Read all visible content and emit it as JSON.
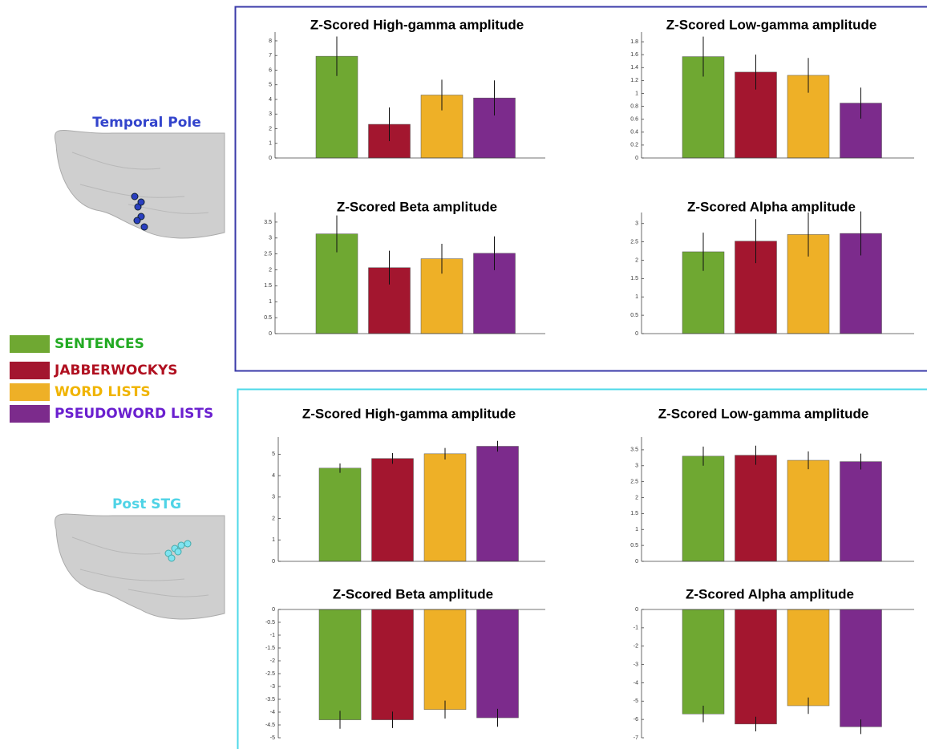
{
  "regions": [
    {
      "label": "Temporal Pole",
      "color": "#3344cc",
      "electrode_color": "#2a3fc0"
    },
    {
      "label": "Post STG",
      "color": "#4fd3e6",
      "electrode_color": "#7fe3f0"
    }
  ],
  "legend": [
    {
      "name": "SENTENCES",
      "color": "#6fa832",
      "label_color": "#22aa22"
    },
    {
      "name": "JABBERWOCKYS",
      "color": "#a3162f",
      "label_color": "#b01020"
    },
    {
      "name": "WORD LISTS",
      "color": "#eeb027",
      "label_color": "#f0b400"
    },
    {
      "name": "PSEUDOWORD LISTS",
      "color": "#7c2b8c",
      "label_color": "#6a1fcf"
    }
  ],
  "chart_data": [
    {
      "type": "bar",
      "title": "Z-Scored High-gamma amplitude",
      "values": [
        6.95,
        2.3,
        4.3,
        4.1
      ],
      "errors": [
        1.35,
        1.15,
        1.05,
        1.2
      ],
      "ylim": [
        0,
        8.6
      ],
      "yticks": [
        0,
        1,
        2,
        3,
        4,
        5,
        6,
        7,
        8
      ]
    },
    {
      "type": "bar",
      "title": "Z-Scored Low-gamma amplitude",
      "values": [
        1.57,
        1.33,
        1.28,
        0.85
      ],
      "errors": [
        0.31,
        0.27,
        0.27,
        0.24
      ],
      "ylim": [
        0,
        1.95
      ],
      "yticks": [
        0,
        0.2,
        0.4,
        0.6,
        0.8,
        1,
        1.2,
        1.4,
        1.6,
        1.8
      ]
    },
    {
      "type": "bar",
      "title": "Z-Scored Beta amplitude",
      "values": [
        3.13,
        2.07,
        2.35,
        2.52
      ],
      "errors": [
        0.58,
        0.53,
        0.47,
        0.53
      ],
      "ylim": [
        0,
        3.8
      ],
      "yticks": [
        0,
        0.5,
        1,
        1.5,
        2,
        2.5,
        3,
        3.5
      ]
    },
    {
      "type": "bar",
      "title": "Z-Scored Alpha amplitude",
      "values": [
        2.23,
        2.52,
        2.7,
        2.73
      ],
      "errors": [
        0.52,
        0.6,
        0.6,
        0.6
      ],
      "ylim": [
        0,
        3.3
      ],
      "yticks": [
        0,
        0.5,
        1,
        1.5,
        2,
        2.5,
        3
      ]
    },
    {
      "type": "bar",
      "title": "Z-Scored High-gamma amplitude",
      "values": [
        4.35,
        4.8,
        5.02,
        5.37
      ],
      "errors": [
        0.22,
        0.25,
        0.27,
        0.25
      ],
      "ylim": [
        0,
        5.8
      ],
      "yticks": [
        0,
        1,
        2,
        3,
        4,
        5
      ]
    },
    {
      "type": "bar",
      "title": "Z-Scored Low-gamma amplitude",
      "values": [
        3.3,
        3.33,
        3.17,
        3.13
      ],
      "errors": [
        0.3,
        0.3,
        0.28,
        0.25
      ],
      "ylim": [
        0,
        3.9
      ],
      "yticks": [
        0,
        0.5,
        1,
        1.5,
        2,
        2.5,
        3,
        3.5
      ]
    },
    {
      "type": "bar",
      "title": "Z-Scored Beta amplitude",
      "values": [
        -4.3,
        -4.3,
        -3.9,
        -4.22
      ],
      "errors": [
        0.35,
        0.32,
        0.35,
        0.35
      ],
      "ylim": [
        -5,
        0
      ],
      "yticks": [
        0,
        -0.5,
        -1,
        -1.5,
        -2,
        -2.5,
        -3,
        -3.5,
        -4,
        -4.5,
        -5
      ]
    },
    {
      "type": "bar",
      "title": "Z-Scored Alpha amplitude",
      "values": [
        -5.7,
        -6.25,
        -5.25,
        -6.4
      ],
      "errors": [
        0.45,
        0.4,
        0.45,
        0.4
      ],
      "ylim": [
        -7,
        0
      ],
      "yticks": [
        0,
        -1,
        -2,
        -3,
        -4,
        -5,
        -6,
        -7
      ]
    }
  ]
}
